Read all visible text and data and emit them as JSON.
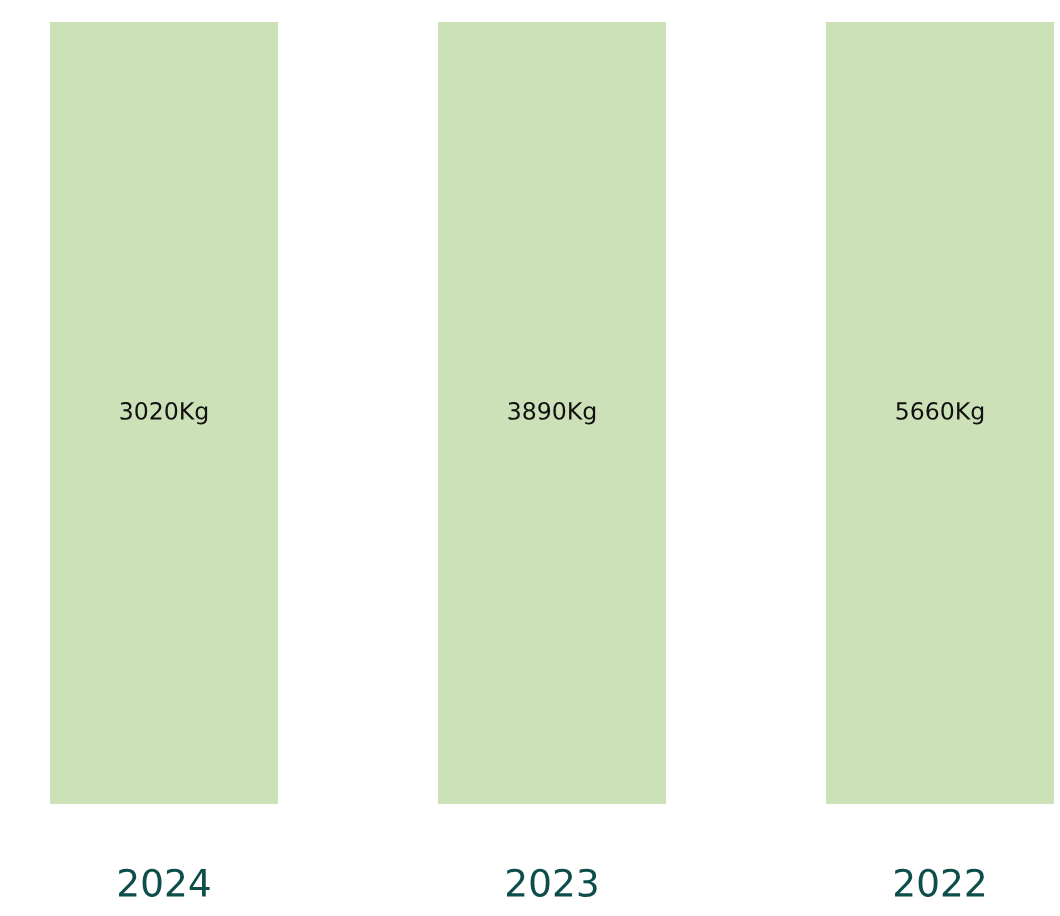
{
  "chart_data": {
    "type": "other",
    "categories": [
      "2024",
      "2023",
      "2022"
    ],
    "values": [
      3020,
      3890,
      5660
    ],
    "value_labels": [
      "3020Kg",
      "3890Kg",
      "5660Kg"
    ],
    "color": "#cde1b9"
  }
}
